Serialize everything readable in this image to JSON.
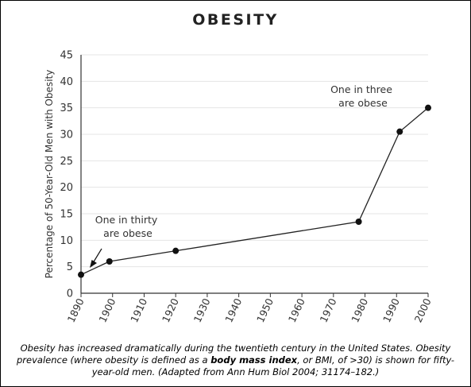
{
  "chart_data": {
    "type": "line",
    "title": "OBESITY",
    "ylabel": "Percentage of 50-Year-Old Men with Obesity",
    "xlabel": "",
    "xlim": [
      1890,
      2000
    ],
    "ylim": [
      0,
      45
    ],
    "xticks": [
      1890,
      1900,
      1910,
      1920,
      1930,
      1940,
      1950,
      1960,
      1970,
      1980,
      1990,
      2000
    ],
    "yticks": [
      0,
      5,
      10,
      15,
      20,
      25,
      30,
      35,
      40,
      45
    ],
    "grid": "horizontal",
    "series": [
      {
        "x": [
          1890,
          1899,
          1920,
          1978,
          1991,
          2000
        ],
        "y": [
          3.5,
          6,
          8,
          13.5,
          30.5,
          35
        ]
      }
    ],
    "annotations": [
      {
        "lines": [
          "One in thirty",
          "are obese"
        ],
        "at_x": 1891,
        "at_y": 4.5
      },
      {
        "lines": [
          "One in three",
          "are obese"
        ]
      }
    ]
  },
  "caption": {
    "part1": "Obesity has increased dramatically during the twentieth century in the United States. Obesity prevalence (where obesity is defined as a ",
    "bold": "body mass index",
    "part2": ", or BMI, of >30) is shown for fifty-year-old men. (Adapted from Ann Hum Biol 2004; 31174–182.)"
  }
}
